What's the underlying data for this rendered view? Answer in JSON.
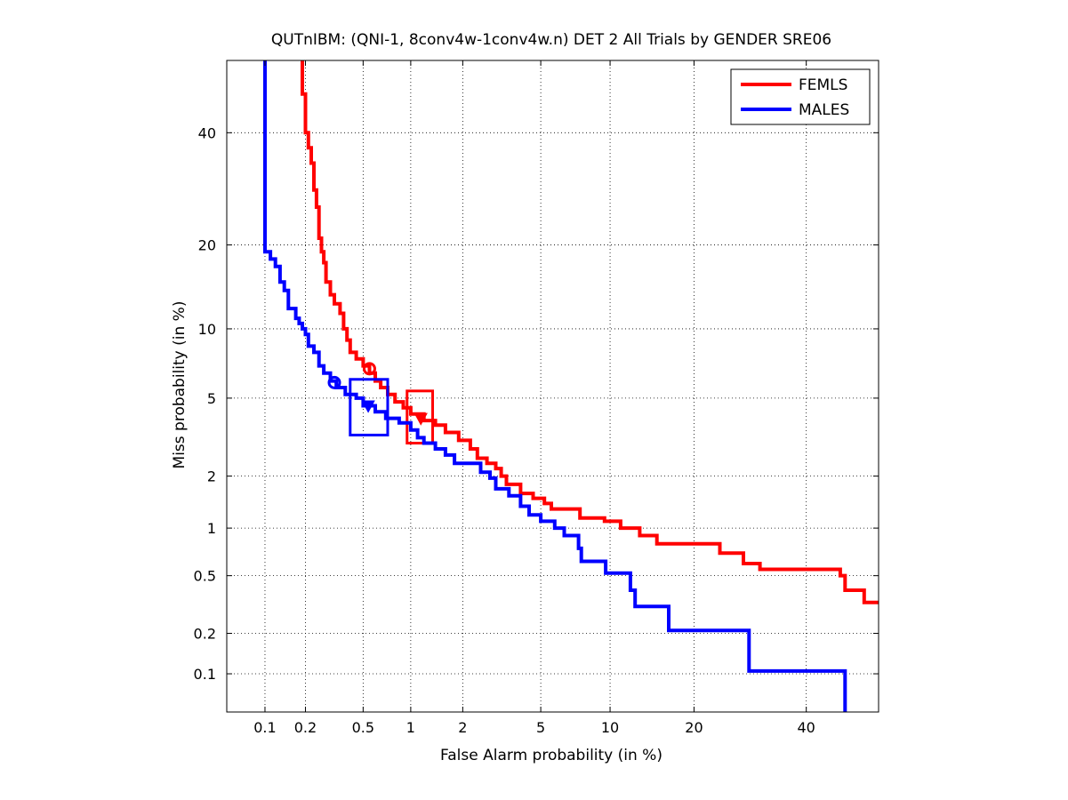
{
  "chart_data": {
    "type": "line",
    "subtype": "DET (probit-scaled axes)",
    "title": "QUTnIBM: (QNI-1, 8conv4w-1conv4w.n) DET 2 All Trials by GENDER SRE06",
    "xlabel": "False Alarm probability (in %)",
    "ylabel": "Miss probability (in %)",
    "xlim": [
      0.05,
      55
    ],
    "ylim": [
      0.05,
      55
    ],
    "x_ticks": [
      0.1,
      0.2,
      0.5,
      1,
      2,
      5,
      10,
      20,
      40
    ],
    "x_tick_labels": [
      "0.1",
      "0.2",
      "0.5",
      "1",
      "2",
      "5",
      "10",
      "20",
      "40"
    ],
    "y_ticks": [
      0.1,
      0.2,
      0.5,
      1,
      2,
      5,
      10,
      20,
      40
    ],
    "y_tick_labels": [
      "0.1",
      "0.2",
      "0.5",
      "1",
      "2",
      "5",
      "10",
      "20",
      "40"
    ],
    "grid": true,
    "legend_position": "top-right",
    "series": [
      {
        "name": "FEMLS",
        "color": "#ff0000",
        "points": [
          [
            0.19,
            55
          ],
          [
            0.19,
            48
          ],
          [
            0.2,
            48
          ],
          [
            0.2,
            40
          ],
          [
            0.21,
            40
          ],
          [
            0.21,
            37
          ],
          [
            0.22,
            37
          ],
          [
            0.22,
            34
          ],
          [
            0.23,
            34
          ],
          [
            0.23,
            29
          ],
          [
            0.24,
            29
          ],
          [
            0.24,
            26
          ],
          [
            0.25,
            26
          ],
          [
            0.25,
            21
          ],
          [
            0.26,
            21
          ],
          [
            0.26,
            19
          ],
          [
            0.27,
            19
          ],
          [
            0.27,
            17.5
          ],
          [
            0.28,
            17.5
          ],
          [
            0.28,
            15
          ],
          [
            0.3,
            15
          ],
          [
            0.3,
            13.5
          ],
          [
            0.32,
            13.5
          ],
          [
            0.32,
            12.5
          ],
          [
            0.35,
            12.5
          ],
          [
            0.35,
            11.5
          ],
          [
            0.37,
            11.5
          ],
          [
            0.37,
            10
          ],
          [
            0.39,
            10
          ],
          [
            0.39,
            9
          ],
          [
            0.41,
            9
          ],
          [
            0.41,
            8
          ],
          [
            0.45,
            8
          ],
          [
            0.45,
            7.5
          ],
          [
            0.5,
            7.5
          ],
          [
            0.5,
            7
          ],
          [
            0.55,
            7
          ],
          [
            0.55,
            6.5
          ],
          [
            0.6,
            6.5
          ],
          [
            0.6,
            6
          ],
          [
            0.65,
            6
          ],
          [
            0.65,
            5.6
          ],
          [
            0.72,
            5.6
          ],
          [
            0.72,
            5.2
          ],
          [
            0.8,
            5.2
          ],
          [
            0.8,
            4.8
          ],
          [
            0.9,
            4.8
          ],
          [
            0.9,
            4.5
          ],
          [
            1.0,
            4.5
          ],
          [
            1.0,
            4.2
          ],
          [
            1.2,
            4.2
          ],
          [
            1.2,
            3.9
          ],
          [
            1.4,
            3.9
          ],
          [
            1.4,
            3.7
          ],
          [
            1.6,
            3.7
          ],
          [
            1.6,
            3.4
          ],
          [
            1.9,
            3.4
          ],
          [
            1.9,
            3.1
          ],
          [
            2.2,
            3.1
          ],
          [
            2.2,
            2.8
          ],
          [
            2.4,
            2.8
          ],
          [
            2.4,
            2.5
          ],
          [
            2.7,
            2.5
          ],
          [
            2.7,
            2.35
          ],
          [
            3.0,
            2.35
          ],
          [
            3.0,
            2.2
          ],
          [
            3.2,
            2.2
          ],
          [
            3.2,
            2.0
          ],
          [
            3.4,
            2.0
          ],
          [
            3.4,
            1.8
          ],
          [
            4.0,
            1.8
          ],
          [
            4.0,
            1.6
          ],
          [
            4.6,
            1.6
          ],
          [
            4.6,
            1.5
          ],
          [
            5.2,
            1.5
          ],
          [
            5.2,
            1.4
          ],
          [
            5.6,
            1.4
          ],
          [
            5.6,
            1.3
          ],
          [
            7.5,
            1.3
          ],
          [
            7.5,
            1.15
          ],
          [
            9.5,
            1.15
          ],
          [
            9.5,
            1.1
          ],
          [
            11,
            1.1
          ],
          [
            11,
            1.0
          ],
          [
            13,
            1.0
          ],
          [
            13,
            0.9
          ],
          [
            15,
            0.9
          ],
          [
            15,
            0.8
          ],
          [
            24,
            0.8
          ],
          [
            24,
            0.7
          ],
          [
            28,
            0.7
          ],
          [
            28,
            0.6
          ],
          [
            31,
            0.6
          ],
          [
            31,
            0.55
          ],
          [
            47,
            0.55
          ],
          [
            47,
            0.5
          ],
          [
            48,
            0.5
          ],
          [
            48,
            0.4
          ],
          [
            52,
            0.4
          ],
          [
            52,
            0.33
          ],
          [
            55,
            0.33
          ]
        ],
        "markers": [
          {
            "type": "circle",
            "label": "actual decision point",
            "x": 0.55,
            "y": 6.8
          },
          {
            "type": "triangle-down",
            "label": "min DCF point",
            "x": 1.15,
            "y": 4.0
          }
        ],
        "confidence_box": {
          "x": [
            0.95,
            1.35
          ],
          "y": [
            3.0,
            5.4
          ]
        }
      },
      {
        "name": "MALES",
        "color": "#0000ff",
        "points": [
          [
            0.1,
            55
          ],
          [
            0.1,
            19
          ],
          [
            0.11,
            19
          ],
          [
            0.11,
            18
          ],
          [
            0.12,
            18
          ],
          [
            0.12,
            17
          ],
          [
            0.13,
            17
          ],
          [
            0.13,
            15
          ],
          [
            0.14,
            15
          ],
          [
            0.14,
            14
          ],
          [
            0.15,
            14
          ],
          [
            0.15,
            12
          ],
          [
            0.17,
            12
          ],
          [
            0.17,
            11
          ],
          [
            0.18,
            11
          ],
          [
            0.18,
            10.5
          ],
          [
            0.19,
            10.5
          ],
          [
            0.19,
            10
          ],
          [
            0.2,
            10
          ],
          [
            0.2,
            9.5
          ],
          [
            0.21,
            9.5
          ],
          [
            0.21,
            8.5
          ],
          [
            0.23,
            8.5
          ],
          [
            0.23,
            8
          ],
          [
            0.25,
            8
          ],
          [
            0.25,
            7
          ],
          [
            0.27,
            7
          ],
          [
            0.27,
            6.5
          ],
          [
            0.3,
            6.5
          ],
          [
            0.3,
            6
          ],
          [
            0.33,
            6
          ],
          [
            0.33,
            5.6
          ],
          [
            0.38,
            5.6
          ],
          [
            0.38,
            5.2
          ],
          [
            0.45,
            5.2
          ],
          [
            0.45,
            5.0
          ],
          [
            0.5,
            5.0
          ],
          [
            0.5,
            4.6
          ],
          [
            0.6,
            4.6
          ],
          [
            0.6,
            4.3
          ],
          [
            0.7,
            4.3
          ],
          [
            0.7,
            4.0
          ],
          [
            0.85,
            4.0
          ],
          [
            0.85,
            3.8
          ],
          [
            1.0,
            3.8
          ],
          [
            1.0,
            3.5
          ],
          [
            1.1,
            3.5
          ],
          [
            1.1,
            3.2
          ],
          [
            1.2,
            3.2
          ],
          [
            1.2,
            3.0
          ],
          [
            1.4,
            3.0
          ],
          [
            1.4,
            2.8
          ],
          [
            1.6,
            2.8
          ],
          [
            1.6,
            2.6
          ],
          [
            1.8,
            2.6
          ],
          [
            1.8,
            2.35
          ],
          [
            2.5,
            2.35
          ],
          [
            2.5,
            2.1
          ],
          [
            2.8,
            2.1
          ],
          [
            2.8,
            1.95
          ],
          [
            3.0,
            1.95
          ],
          [
            3.0,
            1.7
          ],
          [
            3.5,
            1.7
          ],
          [
            3.5,
            1.55
          ],
          [
            4.0,
            1.55
          ],
          [
            4.0,
            1.35
          ],
          [
            4.4,
            1.35
          ],
          [
            4.4,
            1.2
          ],
          [
            5.0,
            1.2
          ],
          [
            5.0,
            1.1
          ],
          [
            5.8,
            1.1
          ],
          [
            5.8,
            1.0
          ],
          [
            6.4,
            1.0
          ],
          [
            6.4,
            0.9
          ],
          [
            7.4,
            0.9
          ],
          [
            7.4,
            0.75
          ],
          [
            7.6,
            0.75
          ],
          [
            7.6,
            0.62
          ],
          [
            9.6,
            0.62
          ],
          [
            9.6,
            0.52
          ],
          [
            12,
            0.52
          ],
          [
            12,
            0.4
          ],
          [
            12.5,
            0.4
          ],
          [
            12.5,
            0.31
          ],
          [
            16.5,
            0.31
          ],
          [
            16.5,
            0.21
          ],
          [
            29,
            0.21
          ],
          [
            29,
            0.105
          ],
          [
            48,
            0.105
          ],
          [
            48,
            0.05
          ]
        ],
        "markers": [
          {
            "type": "circle",
            "label": "actual decision point",
            "x": 0.32,
            "y": 5.9
          },
          {
            "type": "triangle-down",
            "label": "min DCF point",
            "x": 0.54,
            "y": 4.6
          }
        ],
        "confidence_box": {
          "x": [
            0.41,
            0.72
          ],
          "y": [
            3.3,
            6.1
          ]
        }
      }
    ]
  }
}
